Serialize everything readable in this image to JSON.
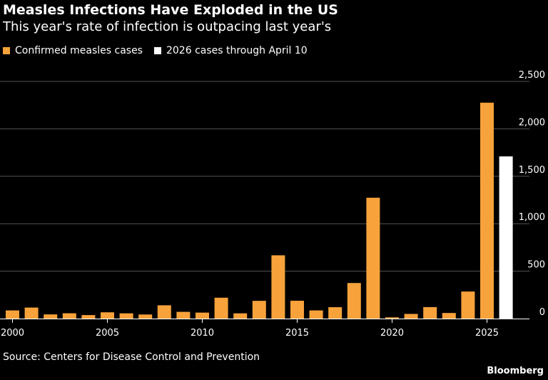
{
  "title": "Measles Infections Have Exploded in the US",
  "subtitle": "This year's rate of infection is outpacing last year's",
  "source": "Source: Centers for Disease Control and Prevention",
  "brand": "Bloomberg",
  "colors": {
    "confirmed": "#f7a23b",
    "partial": "#ffffff",
    "grid": "#555555",
    "background": "#000000"
  },
  "chart_data": {
    "type": "bar",
    "title": "Measles Infections Have Exploded in the US",
    "subtitle": "This year's rate of infection is outpacing last year's",
    "xlabel": "",
    "ylabel": "",
    "ylim": [
      0,
      2500
    ],
    "yticks": [
      0,
      500,
      1000,
      1500,
      2000,
      2500
    ],
    "ytick_labels": [
      "0",
      "500",
      "1,000",
      "1,500",
      "2,000",
      "2,500"
    ],
    "xticks": [
      2000,
      2005,
      2010,
      2015,
      2020,
      2025
    ],
    "xtick_labels": [
      "2000",
      "2005",
      "2010",
      "2015",
      "2020",
      "2025"
    ],
    "grid": true,
    "legend_position": "top-left",
    "series": [
      {
        "name": "Confirmed measles cases",
        "color": "#f7a23b",
        "x": [
          2000,
          2001,
          2002,
          2003,
          2004,
          2005,
          2006,
          2007,
          2008,
          2009,
          2010,
          2011,
          2012,
          2013,
          2014,
          2015,
          2016,
          2017,
          2018,
          2019,
          2020,
          2021,
          2022,
          2023,
          2024,
          2025
        ],
        "values": [
          86,
          116,
          44,
          56,
          37,
          66,
          55,
          43,
          140,
          71,
          63,
          220,
          55,
          187,
          667,
          188,
          86,
          120,
          375,
          1274,
          13,
          49,
          121,
          59,
          285,
          2276
        ]
      },
      {
        "name": "2026 cases through April 10",
        "color": "#ffffff",
        "x": [
          2026
        ],
        "values": [
          1710
        ]
      }
    ]
  }
}
